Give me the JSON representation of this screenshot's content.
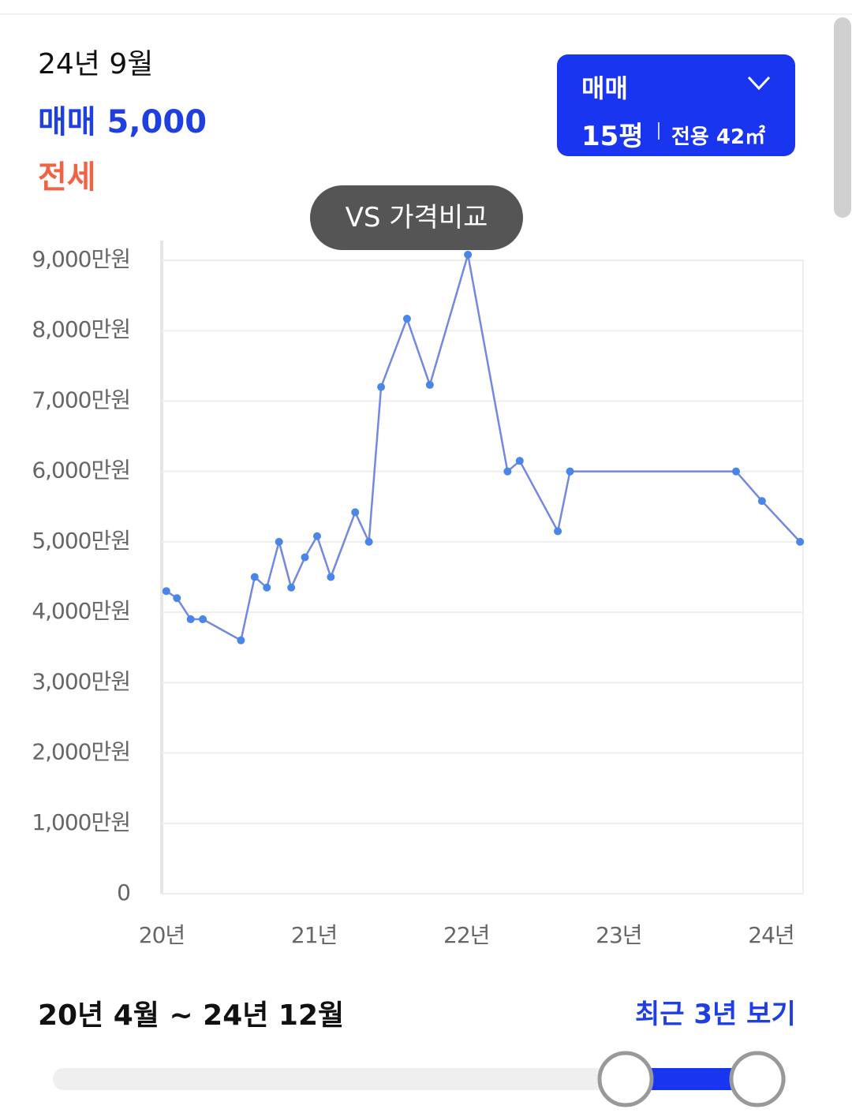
{
  "header": {
    "date": "24년 9월",
    "sale_price": "매매 5,000",
    "jeonse": "전세"
  },
  "selector": {
    "deal_type": "매매",
    "size": "15평",
    "area": "전용 42㎡"
  },
  "compare_button": "VS 가격비교",
  "chart_data": {
    "type": "line",
    "x": [
      20.03,
      20.1,
      20.19,
      20.27,
      20.52,
      20.61,
      20.69,
      20.77,
      20.85,
      20.94,
      21.02,
      21.11,
      21.27,
      21.36,
      21.44,
      21.61,
      21.76,
      22.01,
      22.27,
      22.35,
      22.6,
      22.68,
      23.77,
      23.94,
      24.19
    ],
    "series": [
      {
        "name": "매매",
        "color": "#7388e0",
        "values": [
          4300,
          4200,
          3900,
          3900,
          3600,
          4500,
          4350,
          5000,
          4350,
          4780,
          5080,
          4500,
          5420,
          5000,
          7200,
          8170,
          7230,
          9080,
          6000,
          6150,
          5150,
          6000,
          6000,
          5580,
          5000
        ]
      }
    ],
    "point_color": "#4a86e8",
    "xlim": [
      20,
      24.21
    ],
    "xticks": [
      {
        "value": 20,
        "label": "20년"
      },
      {
        "value": 21,
        "label": "21년"
      },
      {
        "value": 22,
        "label": "22년"
      },
      {
        "value": 23,
        "label": "23년"
      },
      {
        "value": 24,
        "label": "24년"
      }
    ],
    "ylim": [
      0,
      9000
    ],
    "yticks": [
      0,
      {
        "value": 1000,
        "label": "1,000만원"
      },
      {
        "value": 2000,
        "label": "2,000만원"
      },
      {
        "value": 3000,
        "label": "3,000만원"
      },
      {
        "value": 4000,
        "label": "4,000만원"
      },
      {
        "value": 5000,
        "label": "5,000만원"
      },
      {
        "value": 6000,
        "label": "6,000만원"
      },
      {
        "value": 7000,
        "label": "7,000만원"
      },
      {
        "value": 8000,
        "label": "8,000만원"
      },
      {
        "value": 9000,
        "label": "9,000만원"
      }
    ],
    "grid": true
  },
  "range": {
    "label": "20년 4월 ~ 24년 12월",
    "recent_link": "최근 3년 보기"
  }
}
